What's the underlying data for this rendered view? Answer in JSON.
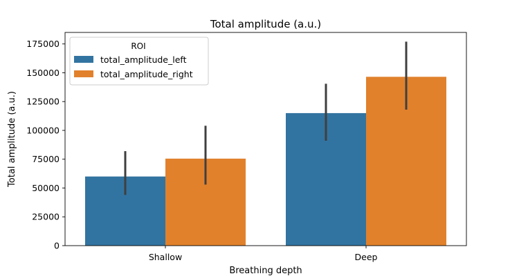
{
  "chart_data": {
    "type": "bar",
    "title": "Total amplitude (a.u.)",
    "xlabel": "Breathing depth",
    "ylabel": "Total amplitude (a.u.)",
    "categories": [
      "Shallow",
      "Deep"
    ],
    "ylim": [
      0,
      185000
    ],
    "yticks": [
      0,
      25000,
      50000,
      75000,
      100000,
      125000,
      150000,
      175000
    ],
    "grid": false,
    "legend": {
      "title": "ROI",
      "placement": "top-left"
    },
    "series": [
      {
        "name": "total_amplitude_left",
        "color": "#3274a1",
        "values": [
          60000,
          115000
        ],
        "error_low": [
          44000,
          91000
        ],
        "error_high": [
          82000,
          140500
        ]
      },
      {
        "name": "total_amplitude_right",
        "color": "#e1812c",
        "values": [
          75500,
          146500
        ],
        "error_low": [
          53000,
          118000
        ],
        "error_high": [
          104000,
          177000
        ]
      }
    ],
    "error_bar_color": "#3f3f3f"
  }
}
